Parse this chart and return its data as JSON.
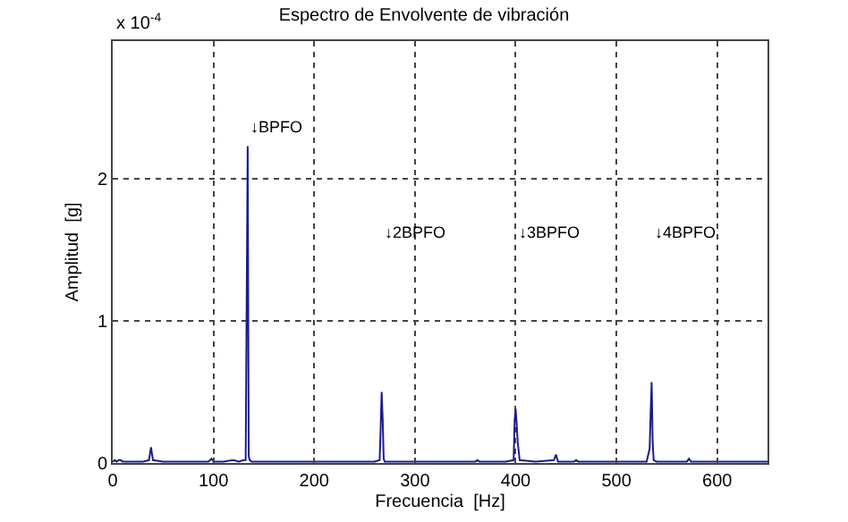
{
  "chart_data": {
    "type": "line",
    "title": "Espectro de Envolvente de vibración",
    "xlabel": "Frecuencia  [Hz]",
    "ylabel": "Amplitud  [g]",
    "x": [
      0,
      2,
      4,
      6,
      8,
      10,
      20,
      30,
      36,
      38,
      40,
      50,
      60,
      80,
      95,
      98,
      100,
      110,
      120,
      125,
      130,
      132,
      133,
      134,
      135,
      136,
      138,
      140,
      160,
      200,
      250,
      260,
      265,
      266,
      267,
      268,
      269,
      270,
      280,
      300,
      330,
      360,
      362,
      364,
      390,
      398,
      399,
      400,
      401,
      402,
      404,
      420,
      438,
      440,
      442,
      450,
      458,
      460,
      462,
      480,
      500,
      520,
      530,
      533,
      534,
      535,
      536,
      537,
      540,
      560,
      570,
      572,
      574,
      600,
      620,
      640,
      650
    ],
    "series": [
      {
        "color": "#1c1c8c",
        "values": [
          0.01,
          0.02,
          0.01,
          0.02,
          0.02,
          0.01,
          0.01,
          0.01,
          0.02,
          0.11,
          0.02,
          0.01,
          0.01,
          0.01,
          0.01,
          0.03,
          0.01,
          0.01,
          0.02,
          0.01,
          0.02,
          0.02,
          1.15,
          2.23,
          0.05,
          0.02,
          0.01,
          0.01,
          0.01,
          0.01,
          0.01,
          0.01,
          0.02,
          0.25,
          0.5,
          0.31,
          0.03,
          0.01,
          0.01,
          0.01,
          0.01,
          0.01,
          0.02,
          0.01,
          0.01,
          0.02,
          0.3,
          0.38,
          0.28,
          0.15,
          0.02,
          0.01,
          0.02,
          0.06,
          0.01,
          0.01,
          0.01,
          0.02,
          0.01,
          0.01,
          0.01,
          0.01,
          0.01,
          0.1,
          0.35,
          0.57,
          0.15,
          0.02,
          0.01,
          0.01,
          0.01,
          0.03,
          0.01,
          0.01,
          0.01,
          0.01,
          0.01
        ]
      }
    ],
    "xlim": [
      0,
      650
    ],
    "xticks": [
      0,
      100,
      200,
      300,
      400,
      500,
      600
    ],
    "ylim": [
      0,
      2.97
    ],
    "yticks": [
      0,
      1,
      2
    ],
    "grid": true,
    "marker": "none",
    "line_style": "solid",
    "annotations": [
      "x 10$^{-4}$",
      "↓BPFO",
      "↓2BPFO",
      "↓3BPFO",
      "↓4BPFO"
    ]
  }
}
